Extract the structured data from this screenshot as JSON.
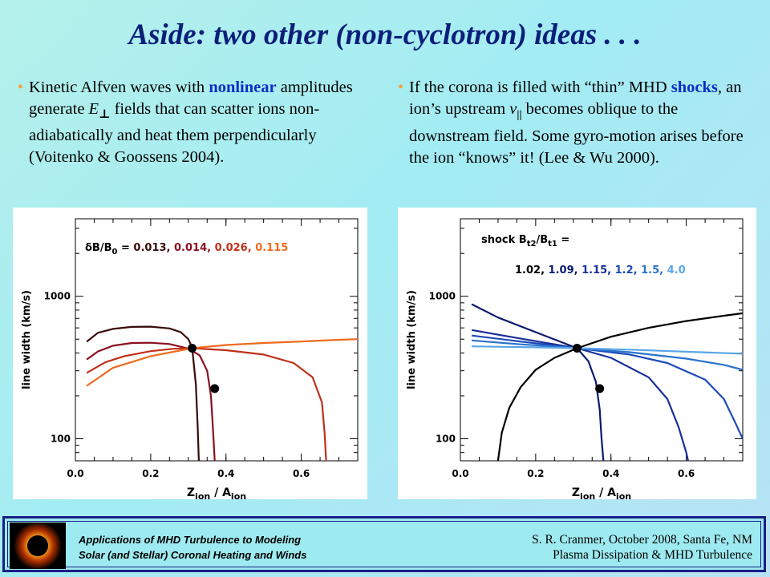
{
  "title": "Aside:  two other (non-cyclotron) ideas . . .",
  "left_bullet": {
    "pre": "Kinetic Alfven waves with ",
    "highlight": "nonlinear",
    "mid": " amplitudes generate ",
    "e_symbol": "E",
    "e_sub": "⊥",
    "post": "  fields that can scatter ions non-adiabatically and heat them perpendicularly (Voitenko & Goossens 2004)."
  },
  "right_bullet": {
    "pre": "If the corona is filled with “thin” MHD ",
    "highlight": "shocks",
    "mid": ", an ion’s upstream ",
    "v_symbol": "v",
    "v_sub": "||",
    "post": " becomes oblique to the downstream field.  Some gyro-motion arises before the ion “knows” it!  (Lee & Wu 2000)."
  },
  "footer": {
    "left_line1": "Applications of MHD Turbulence to Modeling",
    "left_line2": "Solar (and Stellar) Coronal Heating and Winds",
    "right_line1": "S. R. Cranmer,  October 2008, Santa Fe, NM",
    "right_line2": "Plasma Dissipation & MHD Turbulence"
  },
  "chart_data": [
    {
      "type": "line",
      "legend_prefix": "δB/B",
      "legend_sub": "0",
      "legend_eq": " = ",
      "xlabel": "Z",
      "xlabel_sub1": "ion",
      "xlabel_mid": " / A",
      "xlabel_sub2": "ion",
      "ylabel": "line width  (km/s)",
      "xlim": [
        0.0,
        0.75
      ],
      "ylim": [
        70,
        3500
      ],
      "yscale": "log",
      "xticks": [
        "0.0",
        "0.2",
        "0.4",
        "0.6"
      ],
      "yticks": [
        "100",
        "1000"
      ],
      "series": [
        {
          "name": "0.013",
          "color": "#3a0a0a",
          "x": [
            0.03,
            0.06,
            0.1,
            0.15,
            0.2,
            0.25,
            0.28,
            0.3,
            0.31,
            0.32,
            0.325,
            0.328
          ],
          "y": [
            480,
            555,
            590,
            610,
            612,
            595,
            560,
            500,
            440,
            240,
            120,
            70
          ]
        },
        {
          "name": "0.014",
          "color": "#8a1020",
          "x": [
            0.03,
            0.06,
            0.1,
            0.15,
            0.2,
            0.25,
            0.3,
            0.33,
            0.35,
            0.36,
            0.366,
            0.37
          ],
          "y": [
            360,
            410,
            450,
            470,
            472,
            462,
            430,
            385,
            300,
            200,
            110,
            70
          ]
        },
        {
          "name": "0.026",
          "color": "#c0301a",
          "x": [
            0.03,
            0.08,
            0.13,
            0.2,
            0.26,
            0.31,
            0.4,
            0.5,
            0.58,
            0.63,
            0.655,
            0.662,
            0.666
          ],
          "y": [
            290,
            345,
            380,
            412,
            428,
            432,
            418,
            390,
            340,
            270,
            180,
            110,
            70
          ]
        },
        {
          "name": "0.115",
          "color": "#ee6a1c",
          "x": [
            0.03,
            0.1,
            0.2,
            0.31,
            0.4,
            0.5,
            0.6,
            0.7,
            0.75
          ],
          "y": [
            235,
            315,
            380,
            432,
            455,
            470,
            482,
            495,
            500
          ]
        }
      ],
      "markers": [
        {
          "x": 0.31,
          "y": 432
        },
        {
          "x": 0.37,
          "y": 225
        }
      ]
    },
    {
      "type": "line",
      "legend_prefix": "shock  B",
      "legend_sub": "t2",
      "legend_mid": "/B",
      "legend_sub2": "t1",
      "legend_eq": " =",
      "xlabel": "Z",
      "xlabel_sub1": "ion",
      "xlabel_mid": " / A",
      "xlabel_sub2": "ion",
      "ylabel": "line width  (km/s)",
      "xlim": [
        0.0,
        0.75
      ],
      "ylim": [
        70,
        3500
      ],
      "yscale": "log",
      "xticks": [
        "0.0",
        "0.2",
        "0.4",
        "0.6"
      ],
      "yticks": [
        "100",
        "1000"
      ],
      "series": [
        {
          "name": "1.02",
          "color": "#000000",
          "x": [
            0.1,
            0.11,
            0.13,
            0.16,
            0.2,
            0.25,
            0.31,
            0.4,
            0.5,
            0.6,
            0.7,
            0.75
          ],
          "y": [
            70,
            110,
            165,
            230,
            305,
            370,
            432,
            520,
            600,
            670,
            730,
            760
          ]
        },
        {
          "name": "1.09",
          "color": "#0b1a70",
          "x": [
            0.03,
            0.1,
            0.2,
            0.31,
            0.34,
            0.36,
            0.37,
            0.375,
            0.38
          ],
          "y": [
            880,
            710,
            560,
            432,
            350,
            250,
            160,
            100,
            70
          ]
        },
        {
          "name": "1.15",
          "color": "#1a2f9a",
          "x": [
            0.03,
            0.15,
            0.31,
            0.4,
            0.5,
            0.55,
            0.58,
            0.6,
            0.605
          ],
          "y": [
            580,
            510,
            432,
            370,
            270,
            190,
            120,
            80,
            70
          ]
        },
        {
          "name": "1.2",
          "color": "#1c4bb8",
          "x": [
            0.03,
            0.15,
            0.31,
            0.45,
            0.55,
            0.65,
            0.7,
            0.73,
            0.75
          ],
          "y": [
            530,
            485,
            432,
            390,
            340,
            260,
            190,
            130,
            100
          ]
        },
        {
          "name": "1.5",
          "color": "#2a72cc",
          "x": [
            0.03,
            0.15,
            0.31,
            0.45,
            0.6,
            0.7,
            0.75
          ],
          "y": [
            490,
            462,
            432,
            405,
            365,
            330,
            305
          ]
        },
        {
          "name": "4.0",
          "color": "#5aa6e6",
          "x": [
            0.03,
            0.2,
            0.31,
            0.45,
            0.6,
            0.75
          ],
          "y": [
            445,
            438,
            432,
            422,
            408,
            395
          ]
        }
      ],
      "markers": [
        {
          "x": 0.31,
          "y": 432
        },
        {
          "x": 0.37,
          "y": 225
        }
      ]
    }
  ]
}
